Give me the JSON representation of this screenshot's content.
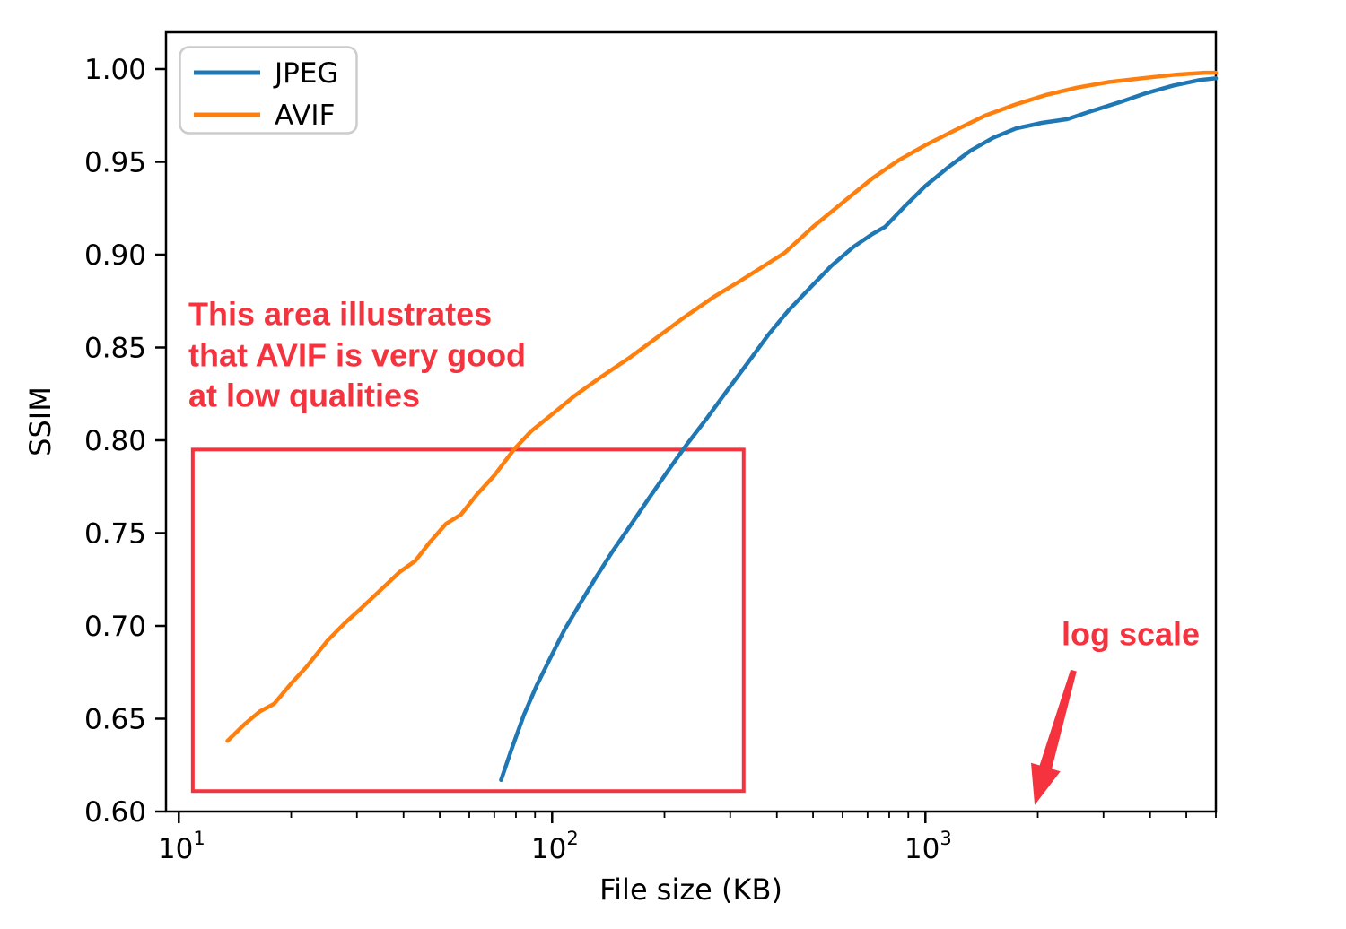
{
  "chart_data": {
    "type": "line",
    "title": "",
    "xlabel": "File size (KB)",
    "ylabel": "SSIM",
    "x_scale": "log",
    "y_scale": "linear",
    "xlim": [
      9.24,
      6000
    ],
    "ylim": [
      0.6,
      1.0198
    ],
    "grid": false,
    "x_major_ticks": [
      10,
      100,
      1000
    ],
    "x_major_tick_labels": [
      {
        "base": "10",
        "exp": "1"
      },
      {
        "base": "10",
        "exp": "2"
      },
      {
        "base": "10",
        "exp": "3"
      }
    ],
    "x_minor_ticks": [
      20,
      30,
      40,
      50,
      60,
      70,
      80,
      90,
      200,
      300,
      400,
      500,
      600,
      700,
      800,
      900,
      2000,
      3000,
      4000,
      5000,
      6000
    ],
    "y_ticks": [
      0.6,
      0.65,
      0.7,
      0.75,
      0.8,
      0.85,
      0.9,
      0.95,
      1.0
    ],
    "legend": {
      "position": "upper left",
      "entries": [
        {
          "label": "JPEG",
          "color": "#1f77b4"
        },
        {
          "label": "AVIF",
          "color": "#ff7f0e"
        }
      ]
    },
    "series": [
      {
        "name": "JPEG",
        "color": "#1f77b4",
        "points": [
          [
            73,
            0.617
          ],
          [
            78,
            0.634
          ],
          [
            84,
            0.652
          ],
          [
            91,
            0.668
          ],
          [
            99,
            0.683
          ],
          [
            108,
            0.698
          ],
          [
            118,
            0.711
          ],
          [
            130,
            0.725
          ],
          [
            145,
            0.74
          ],
          [
            162,
            0.754
          ],
          [
            182,
            0.769
          ],
          [
            205,
            0.784
          ],
          [
            230,
            0.798
          ],
          [
            260,
            0.812
          ],
          [
            295,
            0.827
          ],
          [
            335,
            0.842
          ],
          [
            380,
            0.857
          ],
          [
            430,
            0.87
          ],
          [
            490,
            0.882
          ],
          [
            560,
            0.894
          ],
          [
            640,
            0.904
          ],
          [
            720,
            0.911
          ],
          [
            780,
            0.915
          ],
          [
            880,
            0.926
          ],
          [
            1000,
            0.937
          ],
          [
            1150,
            0.947
          ],
          [
            1320,
            0.956
          ],
          [
            1520,
            0.963
          ],
          [
            1750,
            0.968
          ],
          [
            2050,
            0.971
          ],
          [
            2400,
            0.973
          ],
          [
            2750,
            0.977
          ],
          [
            3300,
            0.982
          ],
          [
            3900,
            0.987
          ],
          [
            4600,
            0.991
          ],
          [
            5400,
            0.994
          ],
          [
            6000,
            0.995
          ]
        ]
      },
      {
        "name": "AVIF",
        "color": "#ff7f0e",
        "points": [
          [
            13.5,
            0.638
          ],
          [
            15,
            0.647
          ],
          [
            16.5,
            0.654
          ],
          [
            18,
            0.658
          ],
          [
            20,
            0.669
          ],
          [
            22,
            0.678
          ],
          [
            25,
            0.692
          ],
          [
            28,
            0.702
          ],
          [
            31,
            0.71
          ],
          [
            35,
            0.72
          ],
          [
            39,
            0.729
          ],
          [
            43,
            0.735
          ],
          [
            47,
            0.745
          ],
          [
            52,
            0.755
          ],
          [
            57,
            0.76
          ],
          [
            63,
            0.771
          ],
          [
            70,
            0.781
          ],
          [
            79,
            0.795
          ],
          [
            88,
            0.805
          ],
          [
            100,
            0.814
          ],
          [
            115,
            0.824
          ],
          [
            135,
            0.834
          ],
          [
            160,
            0.844
          ],
          [
            190,
            0.855
          ],
          [
            225,
            0.866
          ],
          [
            270,
            0.877
          ],
          [
            320,
            0.886
          ],
          [
            370,
            0.894
          ],
          [
            420,
            0.901
          ],
          [
            500,
            0.915
          ],
          [
            600,
            0.928
          ],
          [
            720,
            0.941
          ],
          [
            850,
            0.951
          ],
          [
            1000,
            0.959
          ],
          [
            1200,
            0.967
          ],
          [
            1450,
            0.975
          ],
          [
            1750,
            0.981
          ],
          [
            2100,
            0.986
          ],
          [
            2550,
            0.99
          ],
          [
            3100,
            0.993
          ],
          [
            3800,
            0.995
          ],
          [
            4700,
            0.997
          ],
          [
            5600,
            0.998
          ],
          [
            6000,
            0.998
          ]
        ]
      }
    ],
    "annotations": {
      "color": "#f5333f",
      "box": {
        "x0": 10.9,
        "x1": 326,
        "y0": 0.611,
        "y1": 0.795
      },
      "note": {
        "lines": [
          "This area illustrates",
          "that AVIF is very good",
          "at low qualities"
        ],
        "x": 10.65,
        "line_y": [
          0.868,
          0.846,
          0.824
        ]
      },
      "log_scale_label": {
        "text": "log scale",
        "x": 2320,
        "y": 0.6955
      },
      "arrow": {
        "from_x": 2495,
        "from_y": 0.676,
        "to_x": 1963,
        "to_y": 0.6035
      }
    }
  }
}
